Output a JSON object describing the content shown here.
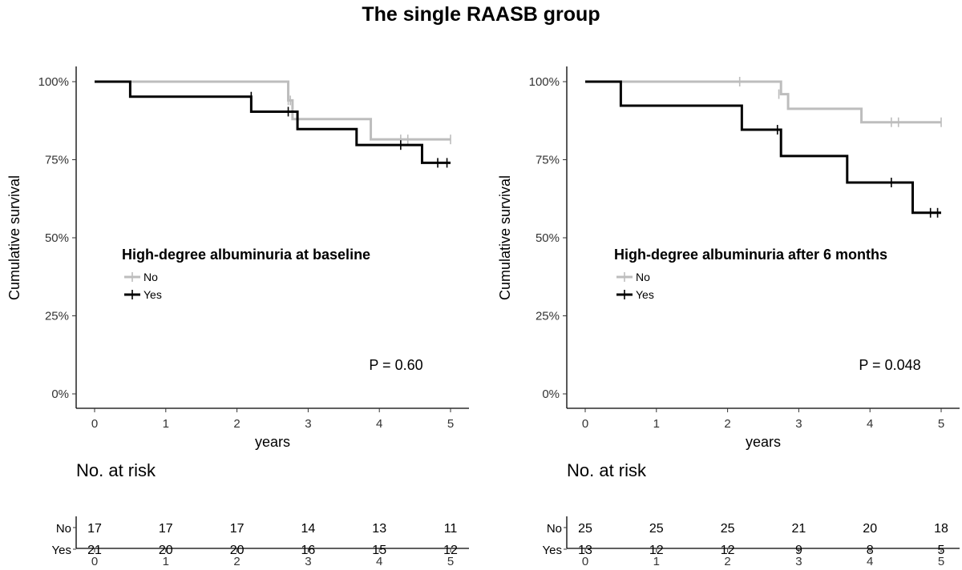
{
  "figure_title": "The single RAASB group",
  "chart_data": [
    {
      "type": "line",
      "subtype": "kaplan-meier",
      "legend_title": "High-degree albuminuria at baseline",
      "xlabel": "years",
      "ylabel": "Cumulative survival",
      "xlim": [
        0,
        5
      ],
      "ylim": [
        0,
        1
      ],
      "x_ticks": [
        "0",
        "1",
        "2",
        "3",
        "4",
        "5"
      ],
      "y_ticks": [
        "0%",
        "25%",
        "50%",
        "75%",
        "100%"
      ],
      "p_value": "P = 0.60",
      "grid": false,
      "legend_position": "center-left",
      "series": [
        {
          "name": "No",
          "color": "#bdbdbd",
          "steps": [
            [
              0,
              1.0
            ],
            [
              2.72,
              0.94
            ],
            [
              2.78,
              0.88
            ],
            [
              3.88,
              0.815
            ],
            [
              5.0,
              0.815
            ]
          ],
          "censored": [
            [
              2.72,
              0.94
            ],
            [
              2.75,
              0.94
            ],
            [
              4.3,
              0.815
            ],
            [
              4.4,
              0.815
            ],
            [
              5.0,
              0.815
            ]
          ]
        },
        {
          "name": "Yes",
          "color": "#000000",
          "steps": [
            [
              0,
              1.0
            ],
            [
              0.5,
              0.952
            ],
            [
              2.2,
              0.904
            ],
            [
              2.85,
              0.848
            ],
            [
              3.68,
              0.797
            ],
            [
              4.6,
              0.74
            ],
            [
              5.0,
              0.74
            ]
          ],
          "censored": [
            [
              2.2,
              0.952
            ],
            [
              2.72,
              0.904
            ],
            [
              4.3,
              0.797
            ],
            [
              4.82,
              0.74
            ],
            [
              4.95,
              0.74
            ]
          ]
        }
      ],
      "risk_table": {
        "title": "No. at risk",
        "times": [
          "0",
          "1",
          "2",
          "3",
          "4",
          "5"
        ],
        "rows": [
          {
            "label": "No",
            "values": [
              17,
              17,
              17,
              14,
              13,
              11
            ]
          },
          {
            "label": "Yes",
            "values": [
              21,
              20,
              20,
              16,
              15,
              12
            ]
          }
        ]
      }
    },
    {
      "type": "line",
      "subtype": "kaplan-meier",
      "legend_title": "High-degree albuminuria after 6 months",
      "xlabel": "years",
      "ylabel": "Cumulative survival",
      "xlim": [
        0,
        5
      ],
      "ylim": [
        0,
        1
      ],
      "x_ticks": [
        "0",
        "1",
        "2",
        "3",
        "4",
        "5"
      ],
      "y_ticks": [
        "0%",
        "25%",
        "50%",
        "75%",
        "100%"
      ],
      "p_value": "P = 0.048",
      "grid": false,
      "legend_position": "center-left",
      "series": [
        {
          "name": "No",
          "color": "#bdbdbd",
          "steps": [
            [
              0,
              1.0
            ],
            [
              2.75,
              0.96
            ],
            [
              2.85,
              0.913
            ],
            [
              3.88,
              0.87
            ],
            [
              5.0,
              0.87
            ]
          ],
          "censored": [
            [
              2.17,
              1.0
            ],
            [
              2.72,
              0.96
            ],
            [
              4.3,
              0.87
            ],
            [
              4.4,
              0.87
            ],
            [
              5.0,
              0.87
            ]
          ]
        },
        {
          "name": "Yes",
          "color": "#000000",
          "steps": [
            [
              0,
              1.0
            ],
            [
              0.5,
              0.923
            ],
            [
              2.2,
              0.846
            ],
            [
              2.75,
              0.762
            ],
            [
              3.68,
              0.677
            ],
            [
              4.6,
              0.58
            ],
            [
              5.0,
              0.58
            ]
          ],
          "censored": [
            [
              2.7,
              0.846
            ],
            [
              4.3,
              0.677
            ],
            [
              4.85,
              0.58
            ],
            [
              4.95,
              0.58
            ]
          ]
        }
      ],
      "risk_table": {
        "title": "No. at risk",
        "times": [
          "0",
          "1",
          "2",
          "3",
          "4",
          "5"
        ],
        "rows": [
          {
            "label": "No",
            "values": [
              25,
              25,
              25,
              21,
              20,
              18
            ]
          },
          {
            "label": "Yes",
            "values": [
              13,
              12,
              12,
              9,
              8,
              5
            ]
          }
        ]
      }
    }
  ]
}
